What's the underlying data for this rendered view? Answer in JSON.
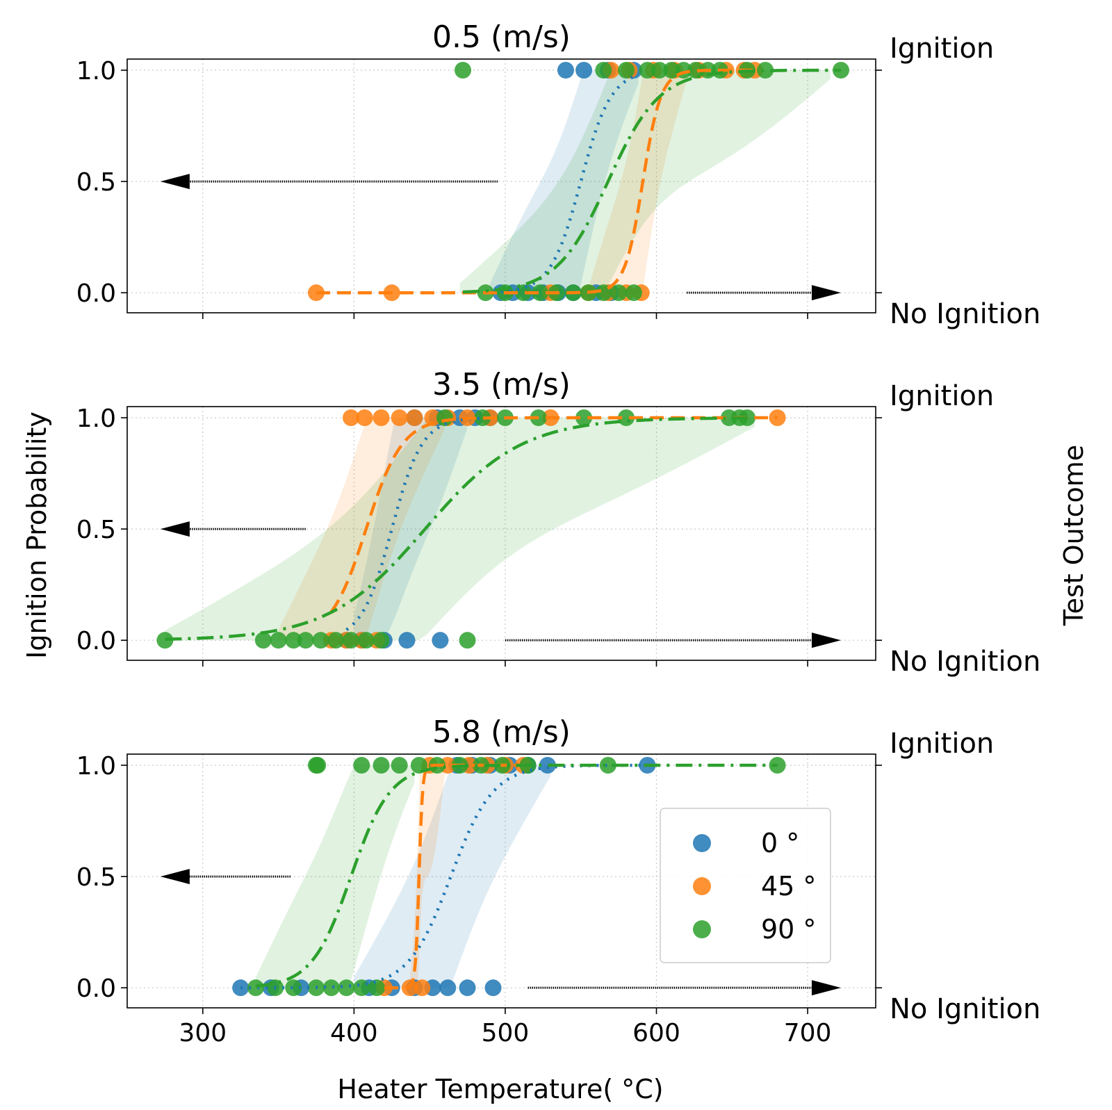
{
  "chart_data": {
    "type": "scatter",
    "xlabel": "Heater Temperature( °C)",
    "ylabel": "Ignition Probability",
    "right_ylabel": "Test Outcome",
    "right_ticklabels": [
      "No Ignition",
      "Ignition"
    ],
    "xlim": [
      250,
      745
    ],
    "ylim": [
      -0.09,
      1.05
    ],
    "xticks": [
      300,
      400,
      500,
      600,
      700
    ],
    "yticks": [
      0.0,
      0.5,
      1.0
    ],
    "grid": true,
    "legend": {
      "placement": "lower-right",
      "entries": [
        "0 °",
        "45 °",
        "90 °"
      ]
    },
    "colors": {
      "0": "#1f77b4",
      "45": "#ff7f0e",
      "90": "#2ca02c"
    },
    "panels": [
      {
        "title": "0.5 (m/s)",
        "arrows": [
          {
            "y": 0.5,
            "from_x": 495,
            "to_x": 272
          },
          {
            "y": 0.0,
            "from_x": 620,
            "to_x": 722
          }
        ],
        "series": [
          {
            "name": "0 °",
            "center": 550,
            "scale": 10,
            "band_low": 490,
            "band_high": 588,
            "ign_x": [
              540,
              552,
              568,
              585
            ],
            "no_x": [
              497,
              505,
              515,
              525,
              535,
              545,
              560,
              570
            ]
          },
          {
            "name": "45 °",
            "center": 591,
            "scale": 6,
            "band_low": 556,
            "band_high": 620,
            "ign_x": [
              570,
              582,
              598,
              612,
              628,
              646,
              658,
              665
            ],
            "no_x": [
              375,
              425,
              530,
              555,
              568,
              580,
              590
            ]
          },
          {
            "name": "90 °",
            "center": 568,
            "scale": 17,
            "band_low": 470,
            "band_high": 715,
            "ign_x": [
              472,
              565,
              580,
              594,
              602,
              610,
              618,
              626,
              634,
              642,
              660,
              672,
              722
            ],
            "no_x": [
              487,
              500,
              512,
              523,
              534,
              545,
              555,
              565,
              575,
              585
            ]
          }
        ]
      },
      {
        "title": "3.5 (m/s)",
        "arrows": [
          {
            "y": 0.5,
            "from_x": 368,
            "to_x": 272
          },
          {
            "y": 0.0,
            "from_x": 500,
            "to_x": 722
          }
        ],
        "series": [
          {
            "name": "0 °",
            "center": 425,
            "scale": 10,
            "band_low": 400,
            "band_high": 475,
            "ign_x": [
              440,
              455,
              470,
              480,
              490
            ],
            "no_x": [
              395,
              405,
              420,
              435,
              457
            ]
          },
          {
            "name": "45 °",
            "center": 408,
            "scale": 12,
            "band_low": 350,
            "band_high": 460,
            "ign_x": [
              398,
              407,
              418,
              430,
              440,
              452,
              462,
              475,
              490,
              530,
              680
            ],
            "no_x": [
              385,
              395,
              405,
              415
            ]
          },
          {
            "name": "90 °",
            "center": 447,
            "scale": 32,
            "band_low": 275,
            "band_high": 665,
            "ign_x": [
              460,
              485,
              500,
              522,
              552,
              580,
              648,
              655,
              660
            ],
            "no_x": [
              275,
              340,
              350,
              360,
              368,
              378,
              388,
              398,
              408,
              418,
              475
            ]
          }
        ]
      },
      {
        "title": "5.8 (m/s)",
        "arrows": [
          {
            "y": 0.5,
            "from_x": 358,
            "to_x": 272
          },
          {
            "y": 0.0,
            "from_x": 515,
            "to_x": 722
          }
        ],
        "series": [
          {
            "name": "0 °",
            "center": 464,
            "scale": 14,
            "band_low": 400,
            "band_high": 530,
            "ign_x": [
              468,
              478,
              490,
              503,
              515,
              528,
              594
            ],
            "no_x": [
              325,
              345,
              365,
              410,
              425,
              440,
              452,
              462,
              475,
              492
            ]
          },
          {
            "name": "45 °",
            "center": 443,
            "scale": 1.2,
            "band_low": 437,
            "band_high": 460,
            "ign_x": [
              450,
              462,
              476,
              488,
              500,
              512
            ],
            "no_x": [
              420,
              437,
              445
            ]
          },
          {
            "name": "90 °",
            "center": 398,
            "scale": 13,
            "band_low": 335,
            "band_high": 440,
            "ign_x": [
              375,
              376,
              405,
              418,
              430,
              443,
              455,
              470,
              484,
              498,
              515,
              568,
              680
            ],
            "no_x": [
              335,
              348,
              360,
              375,
              385,
              395,
              405,
              415
            ]
          }
        ]
      }
    ]
  }
}
